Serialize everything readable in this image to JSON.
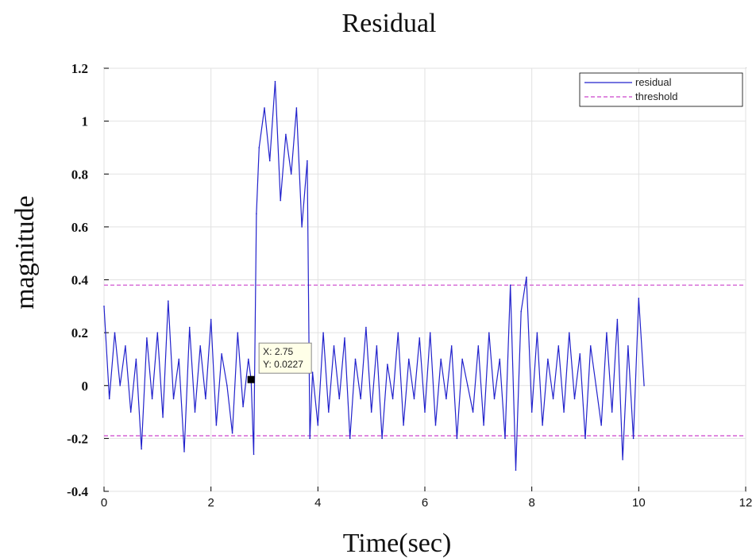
{
  "chart_data": {
    "type": "line",
    "title": "Residual",
    "xlabel": "Time(sec)",
    "ylabel": "magnitude",
    "xlim": [
      0,
      12
    ],
    "ylim": [
      -0.4,
      1.2
    ],
    "xticks": [
      "0",
      "2",
      "4",
      "6",
      "8",
      "10",
      "12"
    ],
    "yticks": [
      "-0.4",
      "-0.2",
      "0",
      "0.2",
      "0.4",
      "0.6",
      "0.8",
      "1",
      "1.2"
    ],
    "grid": true,
    "legend_position": "top-right",
    "series": [
      {
        "name": "residual",
        "color": "#2222cc",
        "style": "solid",
        "x": [
          0,
          0.1,
          0.2,
          0.3,
          0.4,
          0.5,
          0.6,
          0.7,
          0.8,
          0.9,
          1.0,
          1.1,
          1.2,
          1.3,
          1.4,
          1.5,
          1.6,
          1.7,
          1.8,
          1.9,
          2.0,
          2.1,
          2.2,
          2.3,
          2.4,
          2.5,
          2.6,
          2.7,
          2.75,
          2.8,
          2.85,
          2.9,
          3.0,
          3.1,
          3.2,
          3.3,
          3.4,
          3.5,
          3.6,
          3.7,
          3.8,
          3.85,
          3.9,
          4.0,
          4.1,
          4.2,
          4.3,
          4.4,
          4.5,
          4.6,
          4.7,
          4.8,
          4.9,
          5.0,
          5.1,
          5.2,
          5.3,
          5.4,
          5.5,
          5.6,
          5.7,
          5.8,
          5.9,
          6.0,
          6.1,
          6.2,
          6.3,
          6.4,
          6.5,
          6.6,
          6.7,
          6.8,
          6.9,
          7.0,
          7.1,
          7.2,
          7.3,
          7.4,
          7.5,
          7.6,
          7.7,
          7.8,
          7.9,
          8.0,
          8.1,
          8.2,
          8.3,
          8.4,
          8.5,
          8.6,
          8.7,
          8.8,
          8.9,
          9.0,
          9.1,
          9.2,
          9.3,
          9.4,
          9.5,
          9.6,
          9.7,
          9.8,
          9.9,
          10.0,
          10.1
        ],
        "y": [
          0.3,
          -0.05,
          0.2,
          0.0,
          0.15,
          -0.1,
          0.1,
          -0.24,
          0.18,
          -0.05,
          0.2,
          -0.12,
          0.32,
          -0.05,
          0.1,
          -0.25,
          0.22,
          -0.1,
          0.15,
          -0.05,
          0.25,
          -0.15,
          0.12,
          0.0,
          -0.18,
          0.2,
          -0.08,
          0.1,
          0.0227,
          -0.26,
          0.65,
          0.9,
          1.05,
          0.85,
          1.15,
          0.7,
          0.95,
          0.8,
          1.05,
          0.6,
          0.85,
          -0.2,
          0.05,
          -0.15,
          0.2,
          -0.1,
          0.15,
          -0.05,
          0.18,
          -0.2,
          0.1,
          -0.05,
          0.22,
          -0.1,
          0.15,
          -0.2,
          0.08,
          -0.05,
          0.2,
          -0.15,
          0.1,
          -0.05,
          0.18,
          -0.1,
          0.2,
          -0.15,
          0.1,
          -0.05,
          0.15,
          -0.2,
          0.1,
          0.0,
          -0.1,
          0.15,
          -0.15,
          0.2,
          -0.05,
          0.1,
          -0.2,
          0.38,
          -0.32,
          0.28,
          0.41,
          -0.1,
          0.2,
          -0.15,
          0.1,
          -0.05,
          0.15,
          -0.1,
          0.2,
          -0.05,
          0.12,
          -0.2,
          0.15,
          0.0,
          -0.15,
          0.2,
          -0.1,
          0.25,
          -0.28,
          0.15,
          -0.2,
          0.33,
          0.0
        ]
      },
      {
        "name": "threshold",
        "color": "#cc44cc",
        "style": "dashed",
        "x": [
          0,
          12
        ],
        "y": [
          0.38,
          0.38
        ]
      },
      {
        "name": "threshold",
        "color": "#cc44cc",
        "style": "dashed",
        "x": [
          0,
          12
        ],
        "y": [
          -0.19,
          -0.19
        ]
      }
    ],
    "datatip": {
      "x": 2.75,
      "y": 0.0227,
      "x_label": "X: 2.75",
      "y_label": "Y: 0.0227"
    },
    "legend": [
      "residual",
      "threshold"
    ]
  }
}
